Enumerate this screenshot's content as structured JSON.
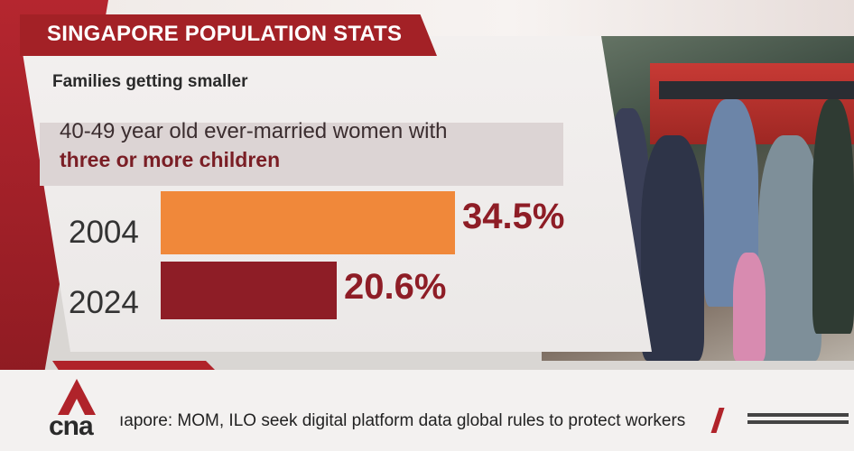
{
  "banner": {
    "title": "SINGAPORE POPULATION STATS",
    "subtitle": "Families getting smaller"
  },
  "description": {
    "line1": "40-49 year old ever-married women with",
    "line2": "three or more children"
  },
  "chart_data": {
    "type": "bar",
    "orientation": "horizontal",
    "categories": [
      "2004",
      "2024"
    ],
    "values": [
      34.5,
      20.6
    ],
    "value_labels": [
      "34.5%",
      "20.6%"
    ],
    "colors": [
      "#f0883a",
      "#8e1d26"
    ],
    "grid": false
  },
  "ticker": {
    "logo": "cna",
    "headline": "ıapore: MOM, ILO seek digital platform data global rules to protect workers"
  },
  "icons": {
    "logo": "cna-logo-icon",
    "menu": "menu-icon"
  }
}
